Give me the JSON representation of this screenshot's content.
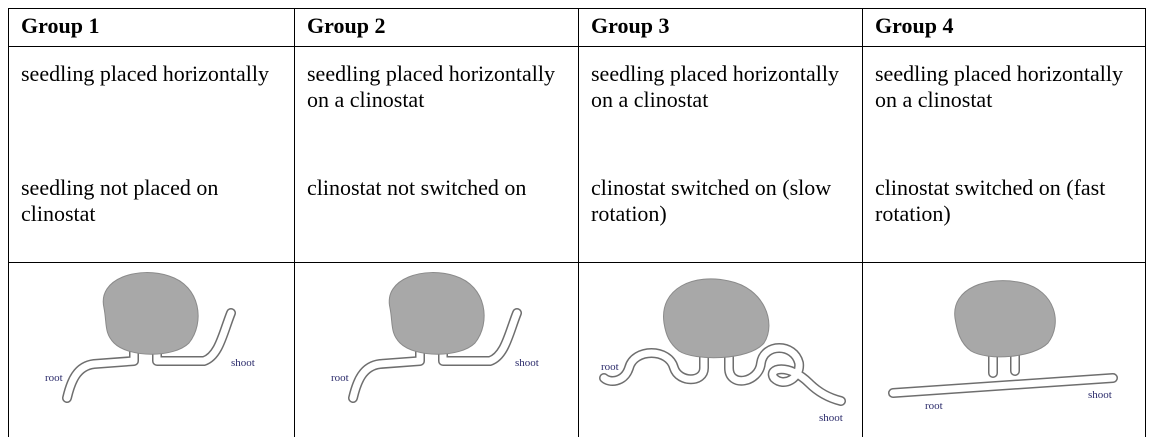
{
  "table": {
    "header": [
      "Group 1",
      "Group 2",
      "Group 3",
      "Group 4"
    ],
    "rows": [
      [
        "seedling placed horizontally",
        "seedling placed horizontally on a clinostat",
        "seedling placed horizontally on a clinostat",
        "seedling placed horizontally on a clinostat"
      ],
      [
        "seedling not placed on clinostat",
        "clinostat not switched on",
        "clinostat switched on (slow rotation)",
        "clinostat switched on (fast rotation)"
      ]
    ],
    "diagrams": [
      {
        "labels": [
          "root",
          "shoot"
        ]
      },
      {
        "labels": [
          "root",
          "shoot"
        ]
      },
      {
        "labels": [
          "root",
          "shoot"
        ]
      },
      {
        "labels": [
          "root",
          "shoot"
        ]
      }
    ]
  }
}
